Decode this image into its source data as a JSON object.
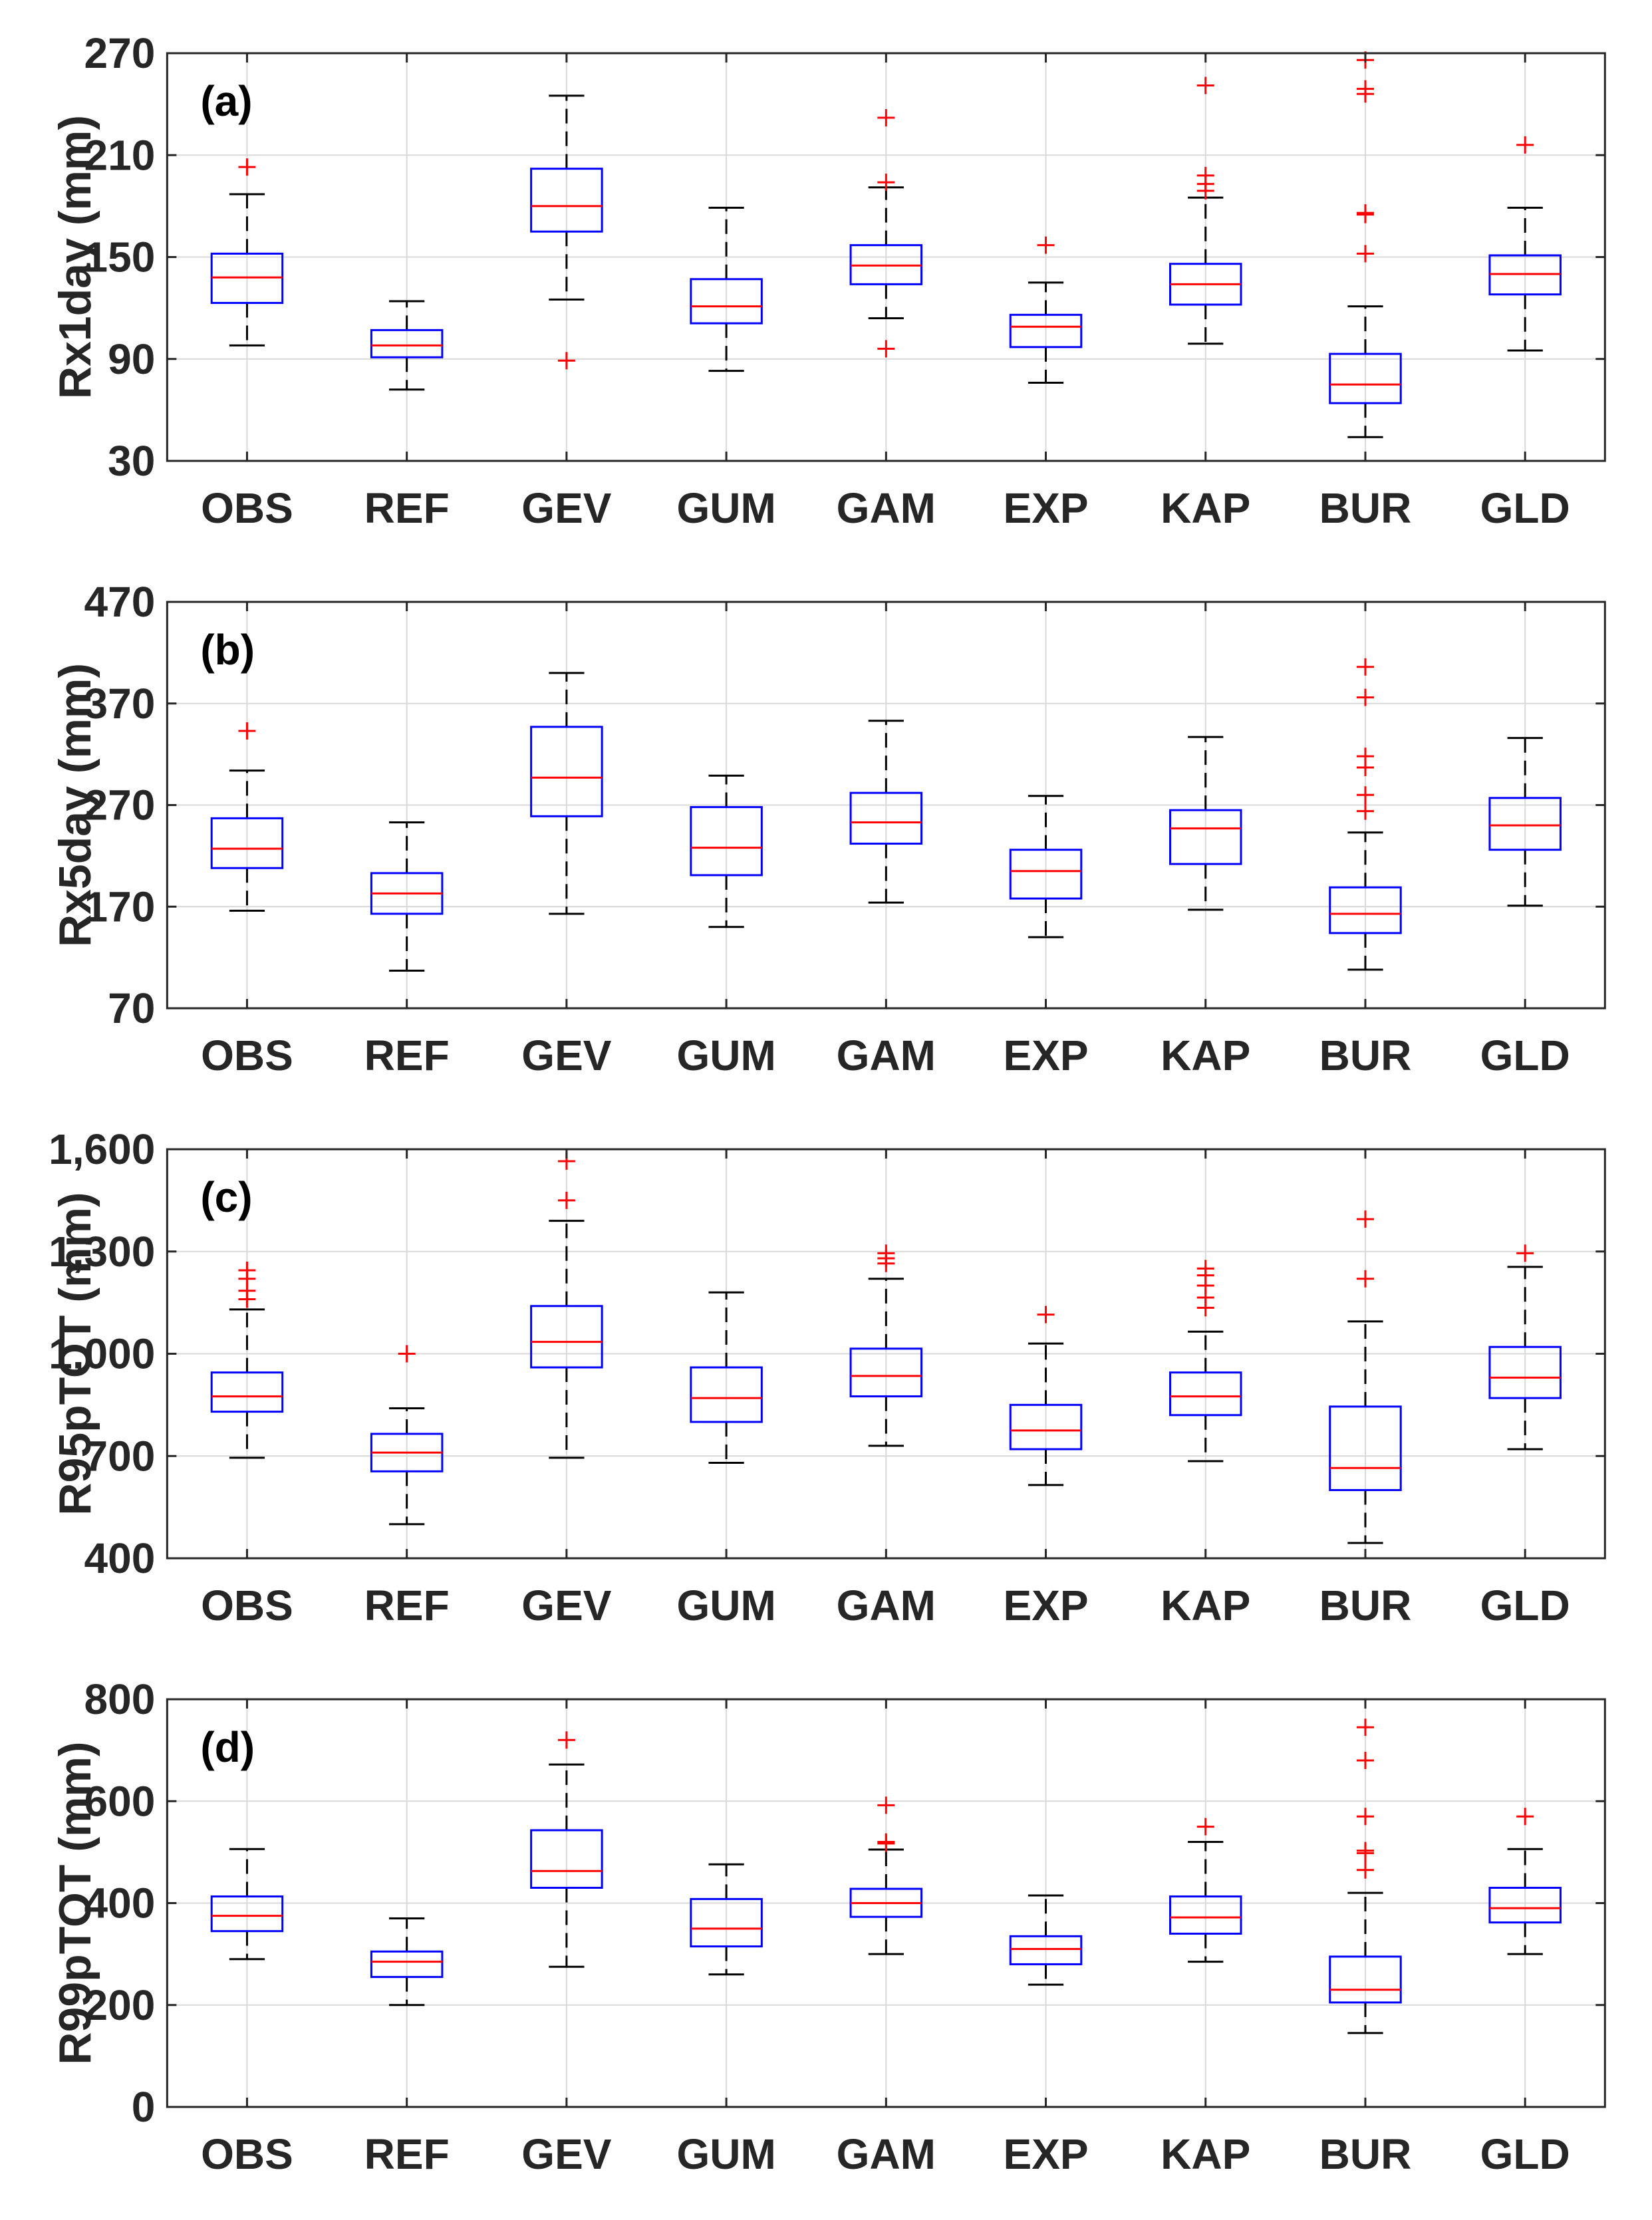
{
  "colors": {
    "box": "#0000ff",
    "median": "#ff0000",
    "outlier": "#ff0000",
    "whisker": "#000000",
    "grid": "#d9d9d9",
    "axis": "#262626"
  },
  "chart_data": [
    {
      "type": "boxplot",
      "label": "(a)",
      "ylabel": "Rx1day (mm)",
      "ylim": [
        30,
        270
      ],
      "yticks": [
        30,
        90,
        150,
        210,
        270
      ],
      "ytick_labels": [
        "30",
        "90",
        "150",
        "210",
        "270"
      ],
      "categories": [
        "OBS",
        "REF",
        "GEV",
        "GUM",
        "GAM",
        "EXP",
        "KAP",
        "BUR",
        "GLD"
      ],
      "boxes": [
        {
          "whisker_low": 98,
          "q1": 123,
          "median": 138,
          "q3": 152,
          "whisker_high": 187,
          "outliers": [
            203
          ]
        },
        {
          "whisker_low": 72,
          "q1": 91,
          "median": 98,
          "q3": 107,
          "whisker_high": 124,
          "outliers": []
        },
        {
          "whisker_low": 125,
          "q1": 165,
          "median": 180,
          "q3": 202,
          "whisker_high": 245,
          "outliers": [
            89
          ]
        },
        {
          "whisker_low": 83,
          "q1": 111,
          "median": 121,
          "q3": 137,
          "whisker_high": 179,
          "outliers": []
        },
        {
          "whisker_low": 114,
          "q1": 134,
          "median": 145,
          "q3": 157,
          "whisker_high": 191,
          "outliers": [
            194,
            232,
            96
          ]
        },
        {
          "whisker_low": 76,
          "q1": 97,
          "median": 109,
          "q3": 116,
          "whisker_high": 135,
          "outliers": [
            157
          ]
        },
        {
          "whisker_low": 99,
          "q1": 122,
          "median": 134,
          "q3": 146,
          "whisker_high": 185,
          "outliers": [
            189,
            193,
            198,
            251
          ]
        },
        {
          "whisker_low": 44,
          "q1": 64,
          "median": 75,
          "q3": 93,
          "whisker_high": 121,
          "outliers": [
            152,
            175,
            176,
            246,
            249,
            266
          ]
        },
        {
          "whisker_low": 95,
          "q1": 128,
          "median": 140,
          "q3": 151,
          "whisker_high": 179,
          "outliers": [
            216
          ]
        }
      ]
    },
    {
      "type": "boxplot",
      "label": "(b)",
      "ylabel": "Rx5day (mm)",
      "ylim": [
        70,
        470
      ],
      "yticks": [
        70,
        170,
        270,
        370,
        470
      ],
      "ytick_labels": [
        "70",
        "170",
        "270",
        "370",
        "470"
      ],
      "categories": [
        "OBS",
        "REF",
        "GEV",
        "GUM",
        "GAM",
        "EXP",
        "KAP",
        "BUR",
        "GLD"
      ],
      "boxes": [
        {
          "whisker_low": 166,
          "q1": 208,
          "median": 227,
          "q3": 257,
          "whisker_high": 304,
          "outliers": [
            343
          ]
        },
        {
          "whisker_low": 107,
          "q1": 163,
          "median": 183,
          "q3": 203,
          "whisker_high": 253,
          "outliers": []
        },
        {
          "whisker_low": 163,
          "q1": 259,
          "median": 297,
          "q3": 347,
          "whisker_high": 400,
          "outliers": []
        },
        {
          "whisker_low": 150,
          "q1": 201,
          "median": 228,
          "q3": 268,
          "whisker_high": 299,
          "outliers": []
        },
        {
          "whisker_low": 174,
          "q1": 232,
          "median": 253,
          "q3": 282,
          "whisker_high": 353,
          "outliers": []
        },
        {
          "whisker_low": 140,
          "q1": 178,
          "median": 205,
          "q3": 226,
          "whisker_high": 279,
          "outliers": []
        },
        {
          "whisker_low": 167,
          "q1": 212,
          "median": 247,
          "q3": 265,
          "whisker_high": 337,
          "outliers": []
        },
        {
          "whisker_low": 108,
          "q1": 144,
          "median": 163,
          "q3": 189,
          "whisker_high": 243,
          "outliers": [
            264,
            280,
            307,
            318,
            376,
            406
          ]
        },
        {
          "whisker_low": 171,
          "q1": 226,
          "median": 250,
          "q3": 277,
          "whisker_high": 336,
          "outliers": []
        }
      ]
    },
    {
      "type": "boxplot",
      "label": "(c)",
      "ylabel": "R95pTOT (mm)",
      "ylim": [
        400,
        1600
      ],
      "yticks": [
        400,
        700,
        1000,
        1300,
        1600
      ],
      "ytick_labels": [
        "400",
        "700",
        "1,000",
        "1,300",
        "1,600"
      ],
      "categories": [
        "OBS",
        "REF",
        "GEV",
        "GUM",
        "GAM",
        "EXP",
        "KAP",
        "BUR",
        "GLD"
      ],
      "boxes": [
        {
          "whisker_low": 695,
          "q1": 830,
          "median": 875,
          "q3": 945,
          "whisker_high": 1130,
          "outliers": [
            1160,
            1185,
            1220,
            1245
          ]
        },
        {
          "whisker_low": 500,
          "q1": 655,
          "median": 710,
          "q3": 765,
          "whisker_high": 840,
          "outliers": [
            1000
          ]
        },
        {
          "whisker_low": 695,
          "q1": 960,
          "median": 1035,
          "q3": 1140,
          "whisker_high": 1390,
          "outliers": [
            1450,
            1565
          ]
        },
        {
          "whisker_low": 680,
          "q1": 800,
          "median": 870,
          "q3": 960,
          "whisker_high": 1180,
          "outliers": []
        },
        {
          "whisker_low": 730,
          "q1": 875,
          "median": 935,
          "q3": 1015,
          "whisker_high": 1220,
          "outliers": [
            1265,
            1280,
            1295
          ]
        },
        {
          "whisker_low": 615,
          "q1": 720,
          "median": 775,
          "q3": 850,
          "whisker_high": 1030,
          "outliers": [
            1115
          ]
        },
        {
          "whisker_low": 685,
          "q1": 820,
          "median": 875,
          "q3": 945,
          "whisker_high": 1065,
          "outliers": [
            1135,
            1165,
            1200,
            1230,
            1250
          ]
        },
        {
          "whisker_low": 445,
          "q1": 600,
          "median": 665,
          "q3": 845,
          "whisker_high": 1095,
          "outliers": [
            1220,
            1395
          ]
        },
        {
          "whisker_low": 720,
          "q1": 870,
          "median": 930,
          "q3": 1020,
          "whisker_high": 1255,
          "outliers": [
            1295
          ]
        }
      ]
    },
    {
      "type": "boxplot",
      "label": "(d)",
      "ylabel": "R99pTOT (mm)",
      "ylim": [
        0,
        800
      ],
      "yticks": [
        0,
        200,
        400,
        600,
        800
      ],
      "ytick_labels": [
        "0",
        "200",
        "400",
        "600",
        "800"
      ],
      "categories": [
        "OBS",
        "REF",
        "GEV",
        "GUM",
        "GAM",
        "EXP",
        "KAP",
        "BUR",
        "GLD"
      ],
      "boxes": [
        {
          "whisker_low": 290,
          "q1": 345,
          "median": 375,
          "q3": 413,
          "whisker_high": 506,
          "outliers": []
        },
        {
          "whisker_low": 200,
          "q1": 255,
          "median": 285,
          "q3": 305,
          "whisker_high": 370,
          "outliers": []
        },
        {
          "whisker_low": 275,
          "q1": 430,
          "median": 463,
          "q3": 543,
          "whisker_high": 672,
          "outliers": [
            720
          ]
        },
        {
          "whisker_low": 260,
          "q1": 315,
          "median": 350,
          "q3": 408,
          "whisker_high": 476,
          "outliers": []
        },
        {
          "whisker_low": 300,
          "q1": 373,
          "median": 400,
          "q3": 428,
          "whisker_high": 505,
          "outliers": [
            517,
            520,
            592
          ]
        },
        {
          "whisker_low": 240,
          "q1": 280,
          "median": 310,
          "q3": 335,
          "whisker_high": 415,
          "outliers": []
        },
        {
          "whisker_low": 285,
          "q1": 340,
          "median": 372,
          "q3": 413,
          "whisker_high": 520,
          "outliers": [
            550
          ]
        },
        {
          "whisker_low": 145,
          "q1": 205,
          "median": 230,
          "q3": 295,
          "whisker_high": 420,
          "outliers": [
            465,
            498,
            503,
            570,
            680,
            745
          ]
        },
        {
          "whisker_low": 300,
          "q1": 362,
          "median": 390,
          "q3": 430,
          "whisker_high": 506,
          "outliers": [
            570
          ]
        }
      ]
    }
  ]
}
